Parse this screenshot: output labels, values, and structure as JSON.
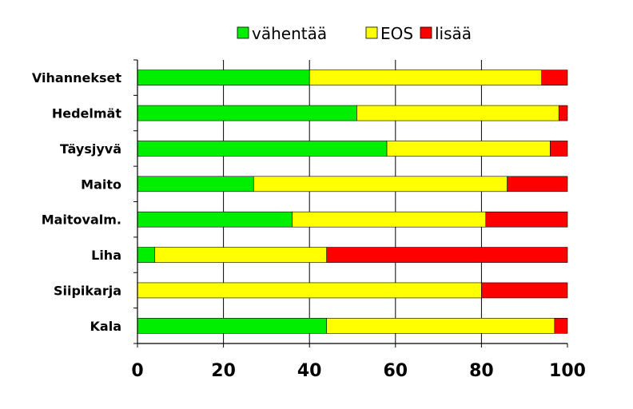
{
  "chart_data": {
    "type": "bar",
    "orientation": "horizontal",
    "stacked": true,
    "title": "",
    "xlabel": "",
    "ylabel": "",
    "xlim": [
      0,
      100
    ],
    "xticks": [
      "0",
      "20",
      "40",
      "60",
      "80",
      "100"
    ],
    "grid": true,
    "legend_position": "top",
    "categories": [
      "Vihannekset",
      "Hedelmät",
      "Täysjyvä",
      "Maito",
      "Maitovalm.",
      "Liha",
      "Siipikarja",
      "Kala"
    ],
    "series": [
      {
        "name": "vähentää",
        "color": "#00ee00",
        "values": [
          40,
          51,
          58,
          27,
          36,
          4,
          0,
          44
        ]
      },
      {
        "name": "EOS",
        "color": "#ffff00",
        "values": [
          54,
          47,
          38,
          59,
          45,
          40,
          80,
          53
        ]
      },
      {
        "name": "lisää",
        "color": "#ff0000",
        "values": [
          6,
          2,
          4,
          14,
          19,
          56,
          20,
          3
        ]
      }
    ]
  }
}
